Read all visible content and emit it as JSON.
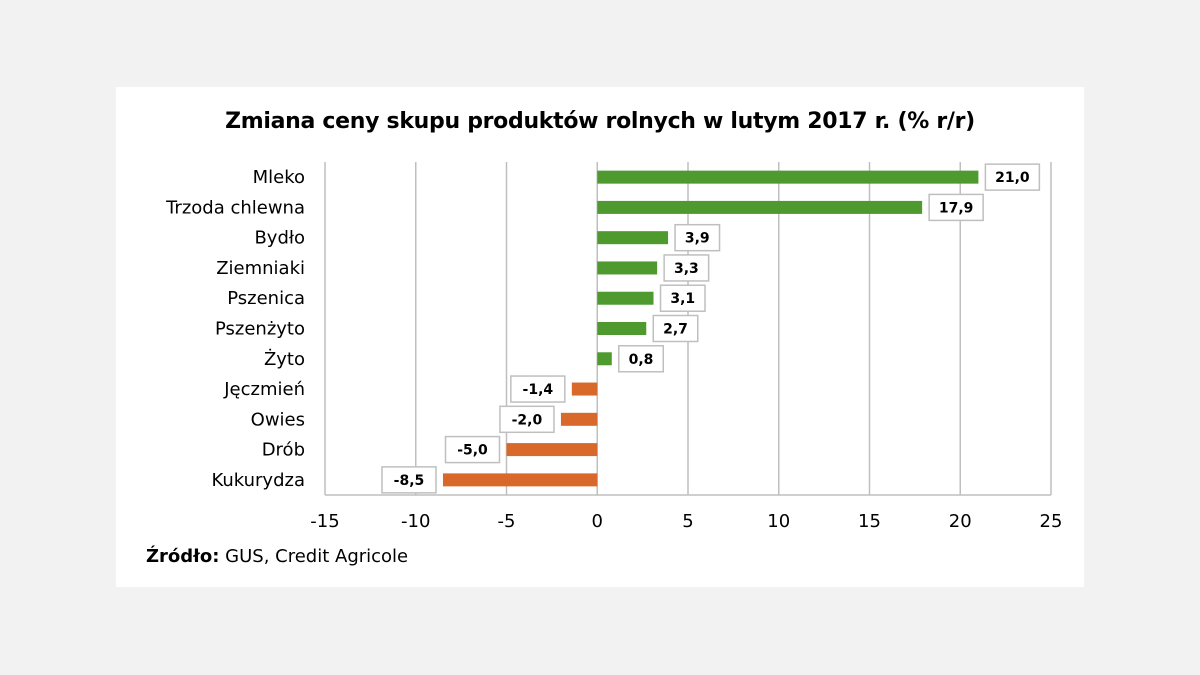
{
  "chart_data": {
    "type": "bar",
    "orientation": "horizontal",
    "title": "Zmiana ceny skupu produktów rolnych w lutym 2017 r. (% r/r)",
    "categories": [
      "Mleko",
      "Trzoda chlewna",
      "Bydło",
      "Ziemniaki",
      "Pszenica",
      "Pszenżyto",
      "Żyto",
      "Jęczmień",
      "Owies",
      "Drób",
      "Kukurydza"
    ],
    "values": [
      21.0,
      17.9,
      3.9,
      3.3,
      3.1,
      2.7,
      0.8,
      -1.4,
      -2.0,
      -5.0,
      -8.5
    ],
    "value_labels": [
      "21,0",
      "17,9",
      "3,9",
      "3,3",
      "3,1",
      "2,7",
      "0,8",
      "-1,4",
      "-2,0",
      "-5,0",
      "-8,5"
    ],
    "xlim": [
      -15,
      25
    ],
    "xticks": [
      -15,
      -10,
      -5,
      0,
      5,
      10,
      15,
      20,
      25
    ],
    "xtick_labels": [
      "-15",
      "-10",
      "-5",
      "0",
      "5",
      "10",
      "15",
      "20",
      "25"
    ],
    "grid": "vertical",
    "legend": "none",
    "colors": {
      "positive": "#4e9a2e",
      "negative": "#d9692a"
    }
  },
  "source": {
    "label": "Źródło:",
    "text": " GUS, Credit Agricole"
  }
}
